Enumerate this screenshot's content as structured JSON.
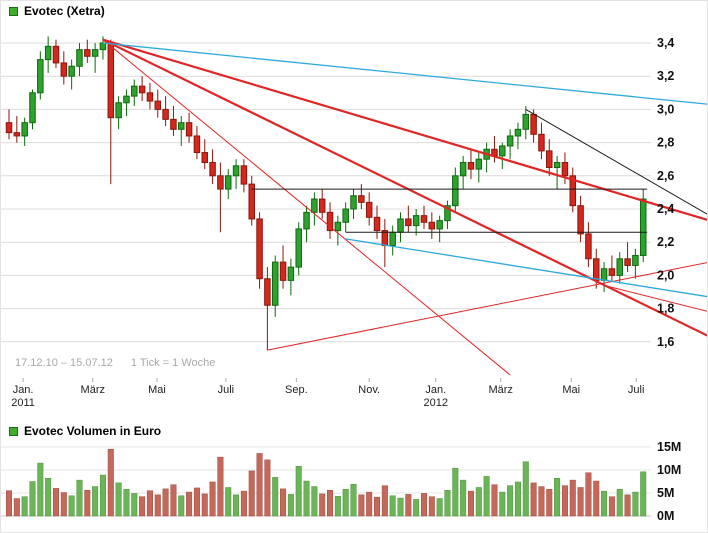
{
  "price_chart": {
    "legend": {
      "title": "Evotec (Xetra)"
    },
    "footnote": {
      "range": "17.12.10 – 15.07.12",
      "tick_info": "1 Tick = 1 Woche"
    }
  },
  "volume_chart": {
    "legend": {
      "title": "Evotec Volumen in Euro"
    }
  },
  "chart_data": {
    "type": "candlestick",
    "title": "Evotec (Xetra)",
    "subtitle_volume": "Evotec Volumen in Euro",
    "interval": "1 Woche",
    "date_range": {
      "start": "17.12.10",
      "end": "15.07.12"
    },
    "price_axis": {
      "side": "right",
      "min": 1.4,
      "max": 3.5,
      "ticks": [
        {
          "value": 3.4,
          "label": "3,4"
        },
        {
          "value": 3.2,
          "label": "3,2"
        },
        {
          "value": 3.0,
          "label": "3,0"
        },
        {
          "value": 2.8,
          "label": "2,8"
        },
        {
          "value": 2.6,
          "label": "2,6"
        },
        {
          "value": 2.4,
          "label": "2,4"
        },
        {
          "value": 2.2,
          "label": "2,2"
        },
        {
          "value": 2.0,
          "label": "2,0"
        },
        {
          "value": 1.8,
          "label": "1,8"
        },
        {
          "value": 1.6,
          "label": "1,6"
        }
      ]
    },
    "volume_axis": {
      "side": "right",
      "unit": "M",
      "ticks": [
        {
          "value": 15,
          "label": "15M"
        },
        {
          "value": 10,
          "label": "10M"
        },
        {
          "value": 5,
          "label": "5M"
        },
        {
          "value": 0,
          "label": "0M"
        }
      ]
    },
    "x_axis": {
      "ticks": [
        {
          "week": 1.8,
          "label": "Jan.",
          "year": "2011"
        },
        {
          "week": 10.7,
          "label": "März"
        },
        {
          "week": 18.9,
          "label": "Mai"
        },
        {
          "week": 27.7,
          "label": "Juli"
        },
        {
          "week": 36.7,
          "label": "Sep."
        },
        {
          "week": 46.0,
          "label": "Nov."
        },
        {
          "week": 54.5,
          "label": "Jan.",
          "year": "2012"
        },
        {
          "week": 62.8,
          "label": "März"
        },
        {
          "week": 71.8,
          "label": "Mai"
        },
        {
          "week": 80.1,
          "label": "Juli"
        }
      ]
    },
    "candles": [
      [
        2.92,
        3.0,
        2.82,
        2.86
      ],
      [
        2.86,
        2.96,
        2.8,
        2.84
      ],
      [
        2.84,
        2.95,
        2.78,
        2.92
      ],
      [
        2.92,
        3.12,
        2.88,
        3.1
      ],
      [
        3.1,
        3.35,
        3.06,
        3.3
      ],
      [
        3.3,
        3.44,
        3.22,
        3.38
      ],
      [
        3.38,
        3.42,
        3.25,
        3.28
      ],
      [
        3.28,
        3.35,
        3.15,
        3.2
      ],
      [
        3.2,
        3.3,
        3.12,
        3.26
      ],
      [
        3.26,
        3.4,
        3.2,
        3.36
      ],
      [
        3.36,
        3.42,
        3.28,
        3.32
      ],
      [
        3.32,
        3.4,
        3.22,
        3.36
      ],
      [
        3.36,
        3.44,
        3.3,
        3.4
      ],
      [
        3.4,
        3.42,
        2.55,
        2.95
      ],
      [
        2.95,
        3.08,
        2.88,
        3.04
      ],
      [
        3.04,
        3.12,
        2.96,
        3.08
      ],
      [
        3.08,
        3.18,
        3.02,
        3.14
      ],
      [
        3.14,
        3.2,
        3.05,
        3.1
      ],
      [
        3.1,
        3.16,
        3.0,
        3.05
      ],
      [
        3.05,
        3.12,
        2.95,
        3.0
      ],
      [
        3.0,
        3.08,
        2.9,
        2.94
      ],
      [
        2.94,
        3.02,
        2.84,
        2.88
      ],
      [
        2.88,
        2.96,
        2.78,
        2.92
      ],
      [
        2.92,
        2.98,
        2.8,
        2.84
      ],
      [
        2.84,
        2.9,
        2.7,
        2.74
      ],
      [
        2.74,
        2.82,
        2.64,
        2.68
      ],
      [
        2.68,
        2.76,
        2.55,
        2.6
      ],
      [
        2.6,
        2.68,
        2.26,
        2.52
      ],
      [
        2.52,
        2.64,
        2.46,
        2.6
      ],
      [
        2.6,
        2.7,
        2.52,
        2.66
      ],
      [
        2.66,
        2.7,
        2.5,
        2.55
      ],
      [
        2.55,
        2.6,
        2.3,
        2.34
      ],
      [
        2.34,
        2.38,
        1.92,
        1.98
      ],
      [
        1.98,
        2.05,
        1.55,
        1.82
      ],
      [
        1.82,
        2.12,
        1.75,
        2.08
      ],
      [
        2.08,
        2.18,
        1.92,
        1.97
      ],
      [
        1.97,
        2.1,
        1.88,
        2.05
      ],
      [
        2.05,
        2.32,
        2.0,
        2.28
      ],
      [
        2.28,
        2.42,
        2.2,
        2.38
      ],
      [
        2.38,
        2.5,
        2.3,
        2.46
      ],
      [
        2.46,
        2.52,
        2.34,
        2.38
      ],
      [
        2.38,
        2.44,
        2.22,
        2.27
      ],
      [
        2.27,
        2.36,
        2.18,
        2.32
      ],
      [
        2.32,
        2.44,
        2.26,
        2.4
      ],
      [
        2.4,
        2.52,
        2.34,
        2.48
      ],
      [
        2.48,
        2.55,
        2.4,
        2.44
      ],
      [
        2.44,
        2.5,
        2.3,
        2.35
      ],
      [
        2.35,
        2.42,
        2.22,
        2.27
      ],
      [
        2.27,
        2.34,
        2.05,
        2.18
      ],
      [
        2.18,
        2.3,
        2.12,
        2.26
      ],
      [
        2.26,
        2.38,
        2.2,
        2.34
      ],
      [
        2.34,
        2.42,
        2.26,
        2.3
      ],
      [
        2.3,
        2.4,
        2.24,
        2.36
      ],
      [
        2.36,
        2.42,
        2.28,
        2.32
      ],
      [
        2.32,
        2.38,
        2.22,
        2.28
      ],
      [
        2.28,
        2.36,
        2.2,
        2.33
      ],
      [
        2.33,
        2.45,
        2.28,
        2.42
      ],
      [
        2.42,
        2.65,
        2.38,
        2.6
      ],
      [
        2.6,
        2.72,
        2.52,
        2.68
      ],
      [
        2.68,
        2.76,
        2.58,
        2.64
      ],
      [
        2.64,
        2.74,
        2.56,
        2.7
      ],
      [
        2.7,
        2.8,
        2.62,
        2.76
      ],
      [
        2.76,
        2.84,
        2.68,
        2.72
      ],
      [
        2.72,
        2.8,
        2.64,
        2.78
      ],
      [
        2.78,
        2.88,
        2.7,
        2.84
      ],
      [
        2.84,
        2.92,
        2.76,
        2.88
      ],
      [
        2.88,
        3.02,
        2.82,
        2.97
      ],
      [
        2.97,
        3.0,
        2.8,
        2.85
      ],
      [
        2.85,
        2.92,
        2.7,
        2.75
      ],
      [
        2.75,
        2.82,
        2.6,
        2.65
      ],
      [
        2.65,
        2.72,
        2.52,
        2.68
      ],
      [
        2.68,
        2.74,
        2.55,
        2.6
      ],
      [
        2.6,
        2.65,
        2.38,
        2.42
      ],
      [
        2.42,
        2.48,
        2.2,
        2.25
      ],
      [
        2.25,
        2.32,
        2.05,
        2.1
      ],
      [
        2.1,
        2.16,
        1.92,
        1.97
      ],
      [
        1.97,
        2.08,
        1.9,
        2.04
      ],
      [
        2.04,
        2.12,
        1.96,
        2.0
      ],
      [
        2.0,
        2.14,
        1.95,
        2.1
      ],
      [
        2.1,
        2.2,
        2.02,
        2.06
      ],
      [
        2.06,
        2.16,
        1.98,
        2.12
      ],
      [
        2.12,
        2.52,
        2.08,
        2.46
      ]
    ],
    "volumes_millions": [
      5.5,
      3.8,
      4.2,
      7.5,
      11.5,
      8.2,
      6.0,
      5.1,
      4.4,
      7.8,
      5.6,
      6.4,
      8.9,
      14.5,
      7.2,
      5.8,
      4.9,
      4.2,
      5.5,
      4.6,
      5.9,
      6.8,
      4.4,
      5.2,
      6.1,
      4.8,
      7.4,
      12.8,
      6.2,
      4.6,
      5.4,
      9.8,
      13.6,
      12.2,
      8.4,
      5.9,
      4.7,
      10.8,
      7.6,
      6.4,
      4.8,
      5.6,
      4.3,
      5.8,
      6.9,
      4.6,
      5.2,
      4.1,
      6.6,
      4.4,
      3.9,
      4.7,
      3.6,
      4.9,
      4.2,
      3.8,
      5.6,
      10.4,
      7.8,
      5.4,
      6.2,
      8.6,
      6.8,
      5.2,
      6.6,
      7.4,
      11.8,
      7.2,
      6.4,
      5.8,
      8.2,
      6.6,
      7.8,
      6.2,
      9.4,
      7.6,
      5.4,
      4.2,
      5.8,
      4.6,
      5.2,
      9.6
    ],
    "overlays": [
      {
        "name": "trendline-red-upper",
        "color": "#e32424",
        "width": 2.2,
        "from_week": 12,
        "from_price": 3.42,
        "to_week": 89.5,
        "to_price": 2.33
      },
      {
        "name": "trendline-red-lower",
        "color": "#e32424",
        "width": 2.2,
        "from_week": 12,
        "from_price": 3.42,
        "to_week": 89.5,
        "to_price": 1.63
      },
      {
        "name": "trendline-red-steep",
        "color": "#e32424",
        "width": 1,
        "from_week": 12,
        "from_price": 3.42,
        "to_week": 64,
        "to_price": 1.4
      },
      {
        "name": "trendline-red-ascending",
        "color": "#e32424",
        "width": 1,
        "from_week": 33,
        "from_price": 1.55,
        "to_week": 89.5,
        "to_price": 2.08
      },
      {
        "name": "trendline-red-fan",
        "color": "#e32424",
        "width": 1,
        "from_week": 76,
        "from_price": 1.94,
        "to_week": 89.5,
        "to_price": 1.78
      },
      {
        "name": "trendline-cyan-upper",
        "color": "#2da9dc",
        "width": 1.3,
        "from_week": 12,
        "from_price": 3.4,
        "to_week": 89.5,
        "to_price": 3.03
      },
      {
        "name": "trendline-cyan-lower",
        "color": "#2da9dc",
        "width": 1.3,
        "from_week": 43,
        "from_price": 2.22,
        "to_week": 89.5,
        "to_price": 1.87
      },
      {
        "name": "horizontal-resistance",
        "color": "#1a1a1a",
        "width": 1,
        "from_week": 31,
        "from_price": 2.52,
        "to_week": 81.5,
        "to_price": 2.52
      },
      {
        "name": "horizontal-support",
        "color": "#1a1a1a",
        "width": 1,
        "from_week": 43,
        "from_price": 2.26,
        "to_week": 81.5,
        "to_price": 2.26
      },
      {
        "name": "trendline-black-descending",
        "color": "#1a1a1a",
        "width": 1,
        "from_week": 66,
        "from_price": 3.0,
        "to_week": 89.5,
        "to_price": 2.36
      }
    ],
    "colors": {
      "up": "#2fa12f",
      "up_border": "#0b6b0b",
      "down": "#d3281e",
      "down_border": "#8c160d",
      "volume_up": "#6cb458",
      "volume_down": "#c4685c",
      "volume_up_border": "#4a9239",
      "volume_down_border": "#a04a3e",
      "grid": "#dcdcdc",
      "legend_swatch": "#3fae2a",
      "legend_swatch_border": "#1c6e14"
    }
  }
}
